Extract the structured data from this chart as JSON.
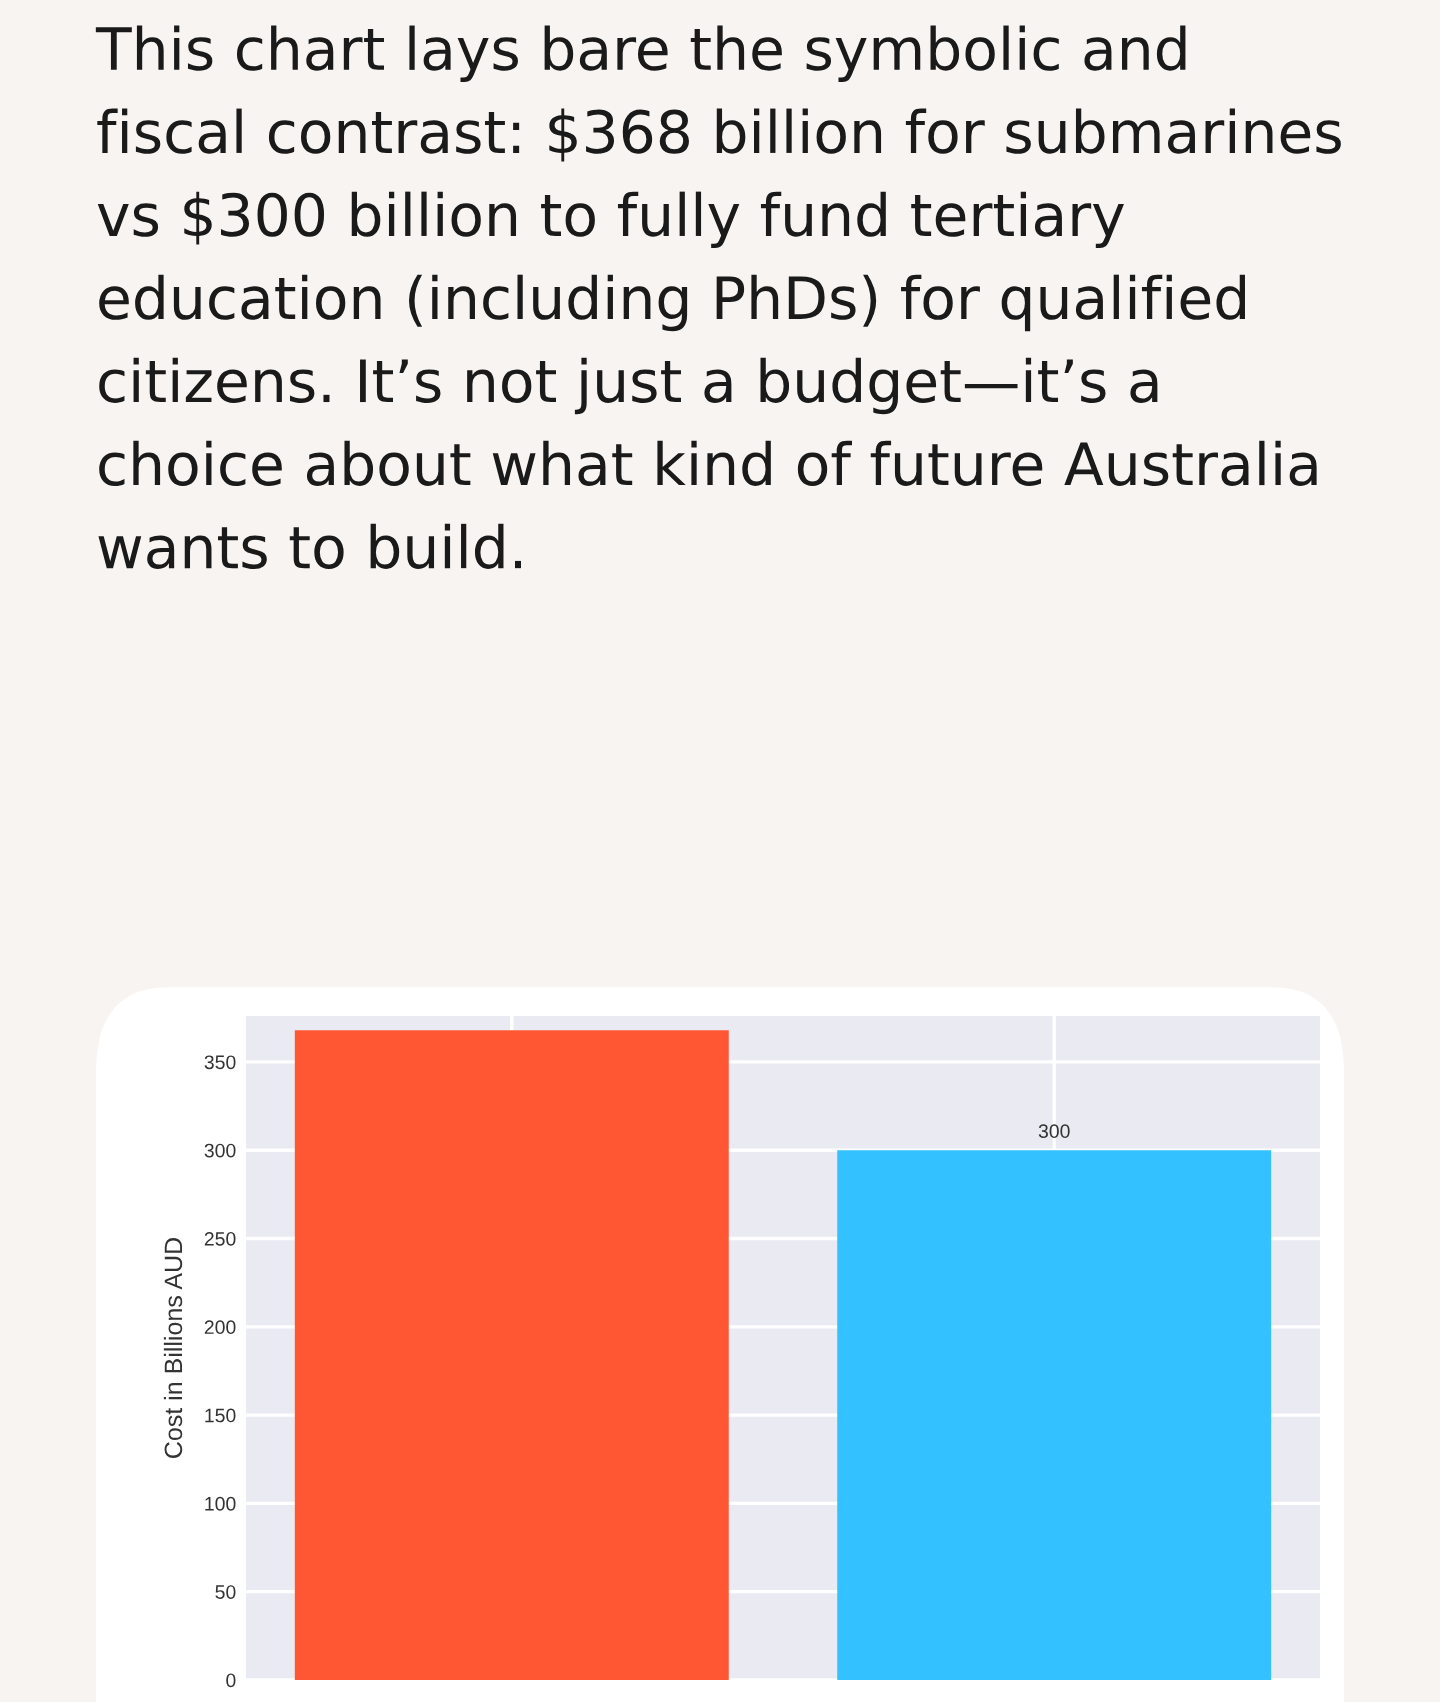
{
  "chart_data": {
    "type": "bar",
    "annotations": [
      "This chart lays bare the symbolic and fiscal contrast: $368 billion for submarines vs $300 billion to fully fund tertiary education (including PhDs) for qualified citizens. It’s not just a budget—it’s a choice about what kind of future Australia wants to build."
    ],
    "ylabel": "Cost in Billions AUD",
    "categories": [
      null,
      null
    ],
    "values": [
      368,
      300
    ],
    "colors": [
      "#ff5733",
      "#33c1ff"
    ],
    "value_labels": [
      null,
      "300"
    ],
    "ylim": [
      0,
      376
    ],
    "yticks": [
      0,
      50,
      100,
      150,
      200,
      250,
      300,
      350
    ],
    "grid": true,
    "tick_labels": "y"
  }
}
